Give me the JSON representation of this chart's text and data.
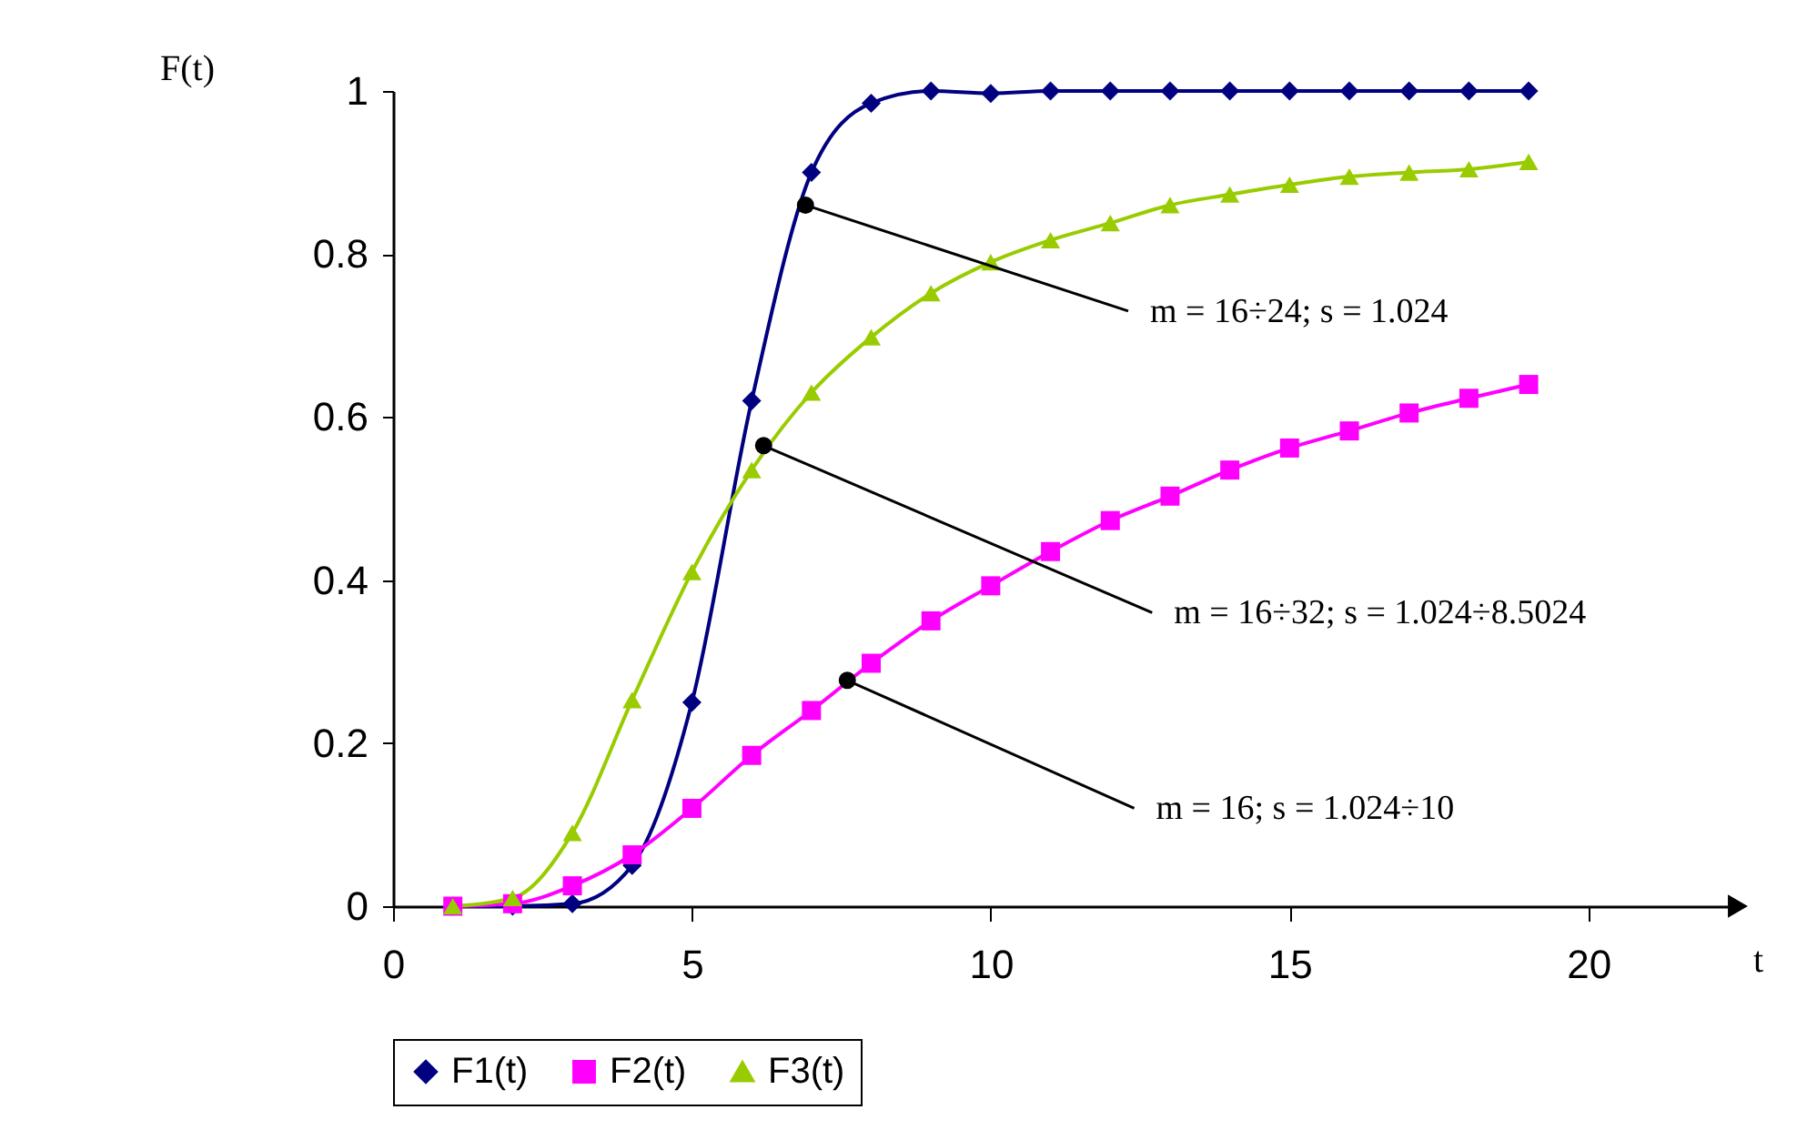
{
  "chart_data": {
    "type": "line",
    "xlabel": "t",
    "ylabel": "F(t)",
    "x": [
      1,
      2,
      3,
      4,
      5,
      6,
      7,
      8,
      9,
      10,
      11,
      12,
      13,
      14,
      15,
      16,
      17,
      18,
      19
    ],
    "series": [
      {
        "name": "F1(t)",
        "color": "#000080",
        "marker": "diamond",
        "values": [
          0,
          0,
          0.003,
          0.05,
          0.25,
          0.62,
          0.9,
          0.985,
          1,
          0.997,
          1,
          1,
          1,
          1,
          1,
          1,
          1,
          1,
          1
        ]
      },
      {
        "name": "F2(t)",
        "color": "#ff00ff",
        "marker": "square",
        "values": [
          0,
          0.003,
          0.025,
          0.063,
          0.12,
          0.185,
          0.24,
          0.298,
          0.35,
          0.393,
          0.435,
          0.473,
          0.503,
          0.535,
          0.562,
          0.583,
          0.605,
          0.623,
          0.64
        ]
      },
      {
        "name": "F3(t)",
        "color": "#99cc00",
        "marker": "triangle",
        "values": [
          0,
          0.01,
          0.09,
          0.253,
          0.41,
          0.535,
          0.63,
          0.698,
          0.752,
          0.79,
          0.817,
          0.838,
          0.86,
          0.873,
          0.885,
          0.895,
          0.9,
          0.904,
          0.913
        ]
      }
    ],
    "annotations": [
      {
        "text": "m = 16÷24; s = 1.024",
        "x": 6.9,
        "y": 0.86
      },
      {
        "text": "m = 16÷32; s = 1.024÷8.5024",
        "x": 6.2,
        "y": 0.565
      },
      {
        "text": "m = 16; s = 1.024÷10",
        "x": 7.6,
        "y": 0.277
      }
    ],
    "xlim": [
      0,
      22.5
    ],
    "xticks": [
      0,
      5,
      10,
      15,
      20
    ],
    "ylim": [
      0,
      1
    ],
    "yticks": [
      0,
      0.2,
      0.4,
      0.6,
      0.8,
      1
    ],
    "grid": false,
    "legend": "bottom",
    "line_style": "solid"
  }
}
